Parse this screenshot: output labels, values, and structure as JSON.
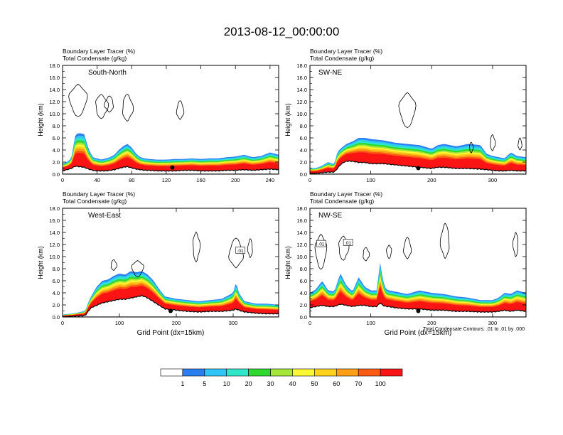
{
  "title": "2013-08-12_00:00:00",
  "panel_header": {
    "line1_label": "Boundary Layer Tracer",
    "line1_unit": "(%)",
    "line2_label": "Total Condensate",
    "line2_unit": "(g/kg)"
  },
  "ylabel": "Height (km)",
  "xlabel": "Grid Point (dx=15km)",
  "contour_note": "Total Condensate Contours: .01 to .01 by .000",
  "contour_label": ".01",
  "colorbar": {
    "colors": [
      "#ffffff",
      "#2a7ef0",
      "#2fc6f7",
      "#2fe7c8",
      "#2ed82e",
      "#a4e63a",
      "#fbf732",
      "#fcd21c",
      "#fc9f16",
      "#fb5a14",
      "#fa1414"
    ],
    "labels": [
      "1",
      "5",
      "10",
      "20",
      "30",
      "40",
      "50",
      "60",
      "70",
      "100"
    ]
  },
  "chart_data": [
    {
      "type": "contour",
      "name": "South-North",
      "xlim": [
        0,
        250
      ],
      "ylim": [
        0,
        18
      ],
      "xticks": [
        "0",
        "40",
        "80",
        "120",
        "160",
        "200",
        "240"
      ],
      "yticks": [
        "0.0",
        "2.0",
        "4.0",
        "6.0",
        "8.0",
        "10.0",
        "12.0",
        "14.0",
        "16.0",
        "18.0"
      ],
      "tracer_top_x": [
        0,
        5,
        10,
        15,
        20,
        25,
        30,
        35,
        40,
        45,
        50,
        55,
        60,
        65,
        70,
        75,
        80,
        85,
        90,
        95,
        100,
        110,
        120,
        130,
        140,
        150,
        160,
        170,
        180,
        190,
        200,
        210,
        220,
        230,
        240,
        250
      ],
      "tracer_top_km": [
        1.8,
        2.0,
        2.6,
        6.6,
        6.8,
        6.6,
        4.2,
        2.8,
        2.6,
        2.4,
        2.6,
        2.8,
        3.2,
        4.0,
        4.6,
        5.0,
        4.4,
        3.4,
        2.8,
        2.6,
        2.5,
        2.4,
        2.4,
        2.5,
        2.5,
        2.6,
        2.5,
        2.6,
        2.6,
        2.8,
        2.9,
        3.2,
        2.8,
        3.0,
        3.6,
        3.2
      ],
      "terrain_km": [
        0.6,
        0.8,
        1.0,
        1.4,
        1.3,
        1.2,
        0.9,
        0.7,
        0.6,
        0.6,
        0.6,
        0.7,
        0.8,
        1.0,
        1.2,
        1.3,
        1.1,
        0.9,
        0.8,
        0.7,
        0.7,
        0.6,
        0.6,
        0.6,
        0.7,
        0.7,
        0.6,
        0.6,
        0.6,
        0.7,
        0.7,
        0.8,
        0.7,
        0.8,
        0.9,
        0.8
      ],
      "marker": [
        127,
        1.1
      ]
    },
    {
      "type": "contour",
      "name": "SW-NE",
      "xlim": [
        0,
        355
      ],
      "ylim": [
        0,
        18
      ],
      "xticks": [
        "0",
        "100",
        "200",
        "300"
      ],
      "yticks": [
        "0.0",
        "2.0",
        "4.0",
        "6.0",
        "8.0",
        "10.0",
        "12.0",
        "14.0",
        "16.0",
        "18.0"
      ],
      "tracer_top_x": [
        0,
        10,
        20,
        30,
        40,
        45,
        50,
        55,
        60,
        70,
        80,
        90,
        100,
        120,
        140,
        160,
        180,
        200,
        210,
        220,
        240,
        260,
        280,
        290,
        300,
        310,
        320,
        330,
        340,
        355
      ],
      "tracer_top_km": [
        1.0,
        1.0,
        1.4,
        2.0,
        1.6,
        3.6,
        4.2,
        4.6,
        5.0,
        5.4,
        6.0,
        6.0,
        5.8,
        5.6,
        5.2,
        5.0,
        4.8,
        4.2,
        4.8,
        5.0,
        4.6,
        5.0,
        4.8,
        3.4,
        3.0,
        2.8,
        2.6,
        3.6,
        3.0,
        2.8
      ],
      "terrain_km": [
        0.2,
        0.2,
        0.3,
        0.4,
        0.4,
        1.0,
        1.6,
        2.0,
        2.2,
        2.2,
        2.0,
        2.0,
        1.8,
        1.8,
        1.6,
        1.4,
        1.2,
        1.0,
        1.2,
        1.2,
        1.0,
        1.0,
        0.9,
        0.8,
        0.7,
        0.6,
        0.6,
        0.7,
        0.6,
        0.6
      ],
      "marker": [
        178,
        1.0
      ]
    },
    {
      "type": "contour",
      "name": "West-East",
      "xlim": [
        0,
        380
      ],
      "ylim": [
        0,
        18
      ],
      "xticks": [
        "0",
        "100",
        "200",
        "300"
      ],
      "yticks": [
        "0.0",
        "2.0",
        "4.0",
        "6.0",
        "8.0",
        "10.0",
        "12.0",
        "14.0",
        "16.0",
        "18.0"
      ],
      "tracer_top_x": [
        0,
        20,
        40,
        45,
        50,
        60,
        70,
        80,
        90,
        100,
        110,
        120,
        130,
        140,
        150,
        160,
        170,
        180,
        200,
        220,
        240,
        260,
        280,
        300,
        305,
        310,
        320,
        340,
        360,
        380
      ],
      "tracer_top_km": [
        0.4,
        0.6,
        1.0,
        2.4,
        3.4,
        5.0,
        6.0,
        6.2,
        6.8,
        7.2,
        7.0,
        7.6,
        7.4,
        7.6,
        7.0,
        6.0,
        4.6,
        3.4,
        3.0,
        2.8,
        2.6,
        2.8,
        3.0,
        4.0,
        5.8,
        4.0,
        2.6,
        2.2,
        2.2,
        2.0
      ],
      "terrain_km": [
        0.1,
        0.2,
        0.3,
        1.0,
        1.6,
        2.0,
        2.4,
        2.6,
        2.8,
        3.0,
        3.0,
        3.2,
        3.4,
        3.6,
        3.2,
        2.6,
        2.0,
        1.4,
        1.2,
        1.0,
        0.9,
        1.0,
        1.0,
        1.2,
        1.4,
        1.2,
        0.9,
        0.7,
        0.6,
        0.6
      ],
      "marker": [
        190,
        1.0
      ]
    },
    {
      "type": "contour",
      "name": "NW-SE",
      "xlim": [
        0,
        355
      ],
      "ylim": [
        0,
        18
      ],
      "xticks": [
        "0",
        "100",
        "200",
        "300"
      ],
      "yticks": [
        "0.0",
        "2.0",
        "4.0",
        "6.0",
        "8.0",
        "10.0",
        "12.0",
        "14.0",
        "16.0",
        "18.0"
      ],
      "tracer_top_x": [
        0,
        10,
        20,
        30,
        40,
        50,
        60,
        70,
        80,
        90,
        100,
        110,
        115,
        120,
        125,
        130,
        140,
        160,
        180,
        200,
        220,
        240,
        260,
        280,
        300,
        310,
        320,
        330,
        340,
        355
      ],
      "tracer_top_km": [
        4.0,
        4.6,
        6.0,
        4.4,
        4.2,
        7.2,
        5.2,
        4.2,
        6.6,
        5.0,
        4.4,
        4.4,
        9.2,
        6.0,
        4.6,
        4.4,
        4.2,
        3.8,
        4.4,
        4.0,
        3.8,
        3.4,
        3.2,
        2.8,
        2.8,
        3.2,
        4.0,
        3.8,
        4.4,
        4.0
      ],
      "terrain_km": [
        1.6,
        1.8,
        2.0,
        1.8,
        1.8,
        2.2,
        2.0,
        1.8,
        2.0,
        2.0,
        1.8,
        1.8,
        2.4,
        2.0,
        1.8,
        1.8,
        1.6,
        1.4,
        1.4,
        1.2,
        1.2,
        1.0,
        1.0,
        0.9,
        0.9,
        1.0,
        1.2,
        1.0,
        1.2,
        1.0
      ],
      "marker": [
        178,
        1.0
      ]
    }
  ]
}
